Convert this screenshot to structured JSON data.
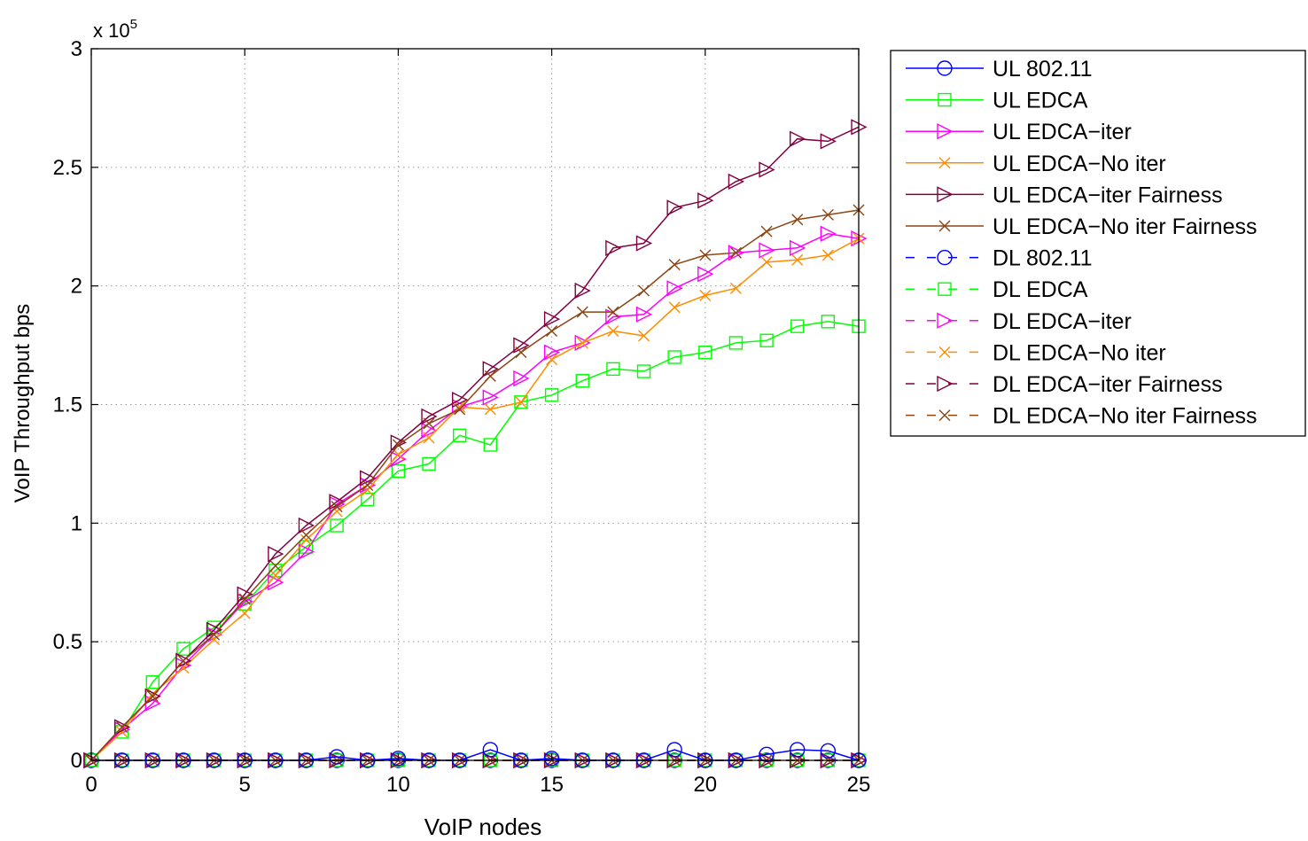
{
  "chart_data": {
    "type": "line",
    "title": "",
    "xlabel": "VoIP nodes",
    "ylabel": "VoIP Throughput bps",
    "exponent_label": {
      "base": "x 10",
      "power": "5"
    },
    "xlim": [
      0,
      25
    ],
    "ylim": [
      0,
      300000
    ],
    "y_scale_factor": 100000,
    "xticks": [
      0,
      5,
      10,
      15,
      20,
      25
    ],
    "yticks": [
      0,
      0.5,
      1,
      1.5,
      2,
      2.5,
      3
    ],
    "grid": true,
    "legend_position": "outside-right",
    "x": [
      0,
      1,
      2,
      3,
      4,
      5,
      6,
      7,
      8,
      9,
      10,
      11,
      12,
      13,
      14,
      15,
      16,
      17,
      18,
      19,
      20,
      21,
      22,
      23,
      24,
      25
    ],
    "series": [
      {
        "name": "UL 802.11",
        "color": "#0000ff",
        "marker": "circle",
        "dash": "solid",
        "values": [
          0,
          0,
          0,
          0,
          0,
          0,
          0,
          0,
          1500,
          0,
          800,
          0,
          0,
          4500,
          0,
          800,
          0,
          0,
          0,
          4500,
          0,
          0,
          2500,
          4500,
          4000,
          0
        ]
      },
      {
        "name": "UL EDCA",
        "color": "#00ff00",
        "marker": "square",
        "dash": "solid",
        "values": [
          0,
          12000,
          33000,
          47000,
          56000,
          66000,
          80000,
          90000,
          99000,
          110000,
          122000,
          125000,
          137000,
          133000,
          151000,
          154000,
          160000,
          165000,
          164000,
          170000,
          172000,
          176000,
          177000,
          183000,
          185000,
          183000
        ]
      },
      {
        "name": "UL EDCA−iter",
        "color": "#ff00ff",
        "marker": "triangle-right",
        "dash": "solid",
        "values": [
          0,
          13000,
          24000,
          40000,
          53000,
          67000,
          75000,
          88000,
          108000,
          116000,
          127000,
          139000,
          149000,
          153000,
          161000,
          172000,
          176000,
          187000,
          188000,
          199000,
          205000,
          214000,
          215000,
          216000,
          222000,
          220000
        ]
      },
      {
        "name": "UL EDCA−No iter",
        "color": "#ff8c00",
        "marker": "x",
        "dash": "solid",
        "values": [
          0,
          12000,
          28000,
          39000,
          51000,
          62000,
          78000,
          93000,
          105000,
          114000,
          129000,
          136000,
          149000,
          148000,
          151000,
          169000,
          176000,
          181000,
          179000,
          191000,
          196000,
          199000,
          210000,
          211000,
          213000,
          220000
        ]
      },
      {
        "name": "UL EDCA−iter Fairness",
        "color": "#800040",
        "marker": "triangle-right",
        "dash": "solid",
        "values": [
          0,
          14000,
          27000,
          42000,
          55000,
          70000,
          87000,
          99000,
          109000,
          119000,
          134000,
          145000,
          152000,
          165000,
          175000,
          186000,
          198000,
          216000,
          218000,
          233000,
          236000,
          244000,
          249000,
          262000,
          261000,
          267000
        ]
      },
      {
        "name": "UL EDCA−No iter Fairness",
        "color": "#8b4513",
        "marker": "x",
        "dash": "solid",
        "values": [
          0,
          14000,
          27000,
          42000,
          53000,
          68000,
          82000,
          95000,
          107000,
          116000,
          133000,
          142000,
          148000,
          162000,
          172000,
          181000,
          189000,
          189000,
          198000,
          209000,
          213000,
          214000,
          223000,
          228000,
          230000,
          232000
        ]
      },
      {
        "name": "DL 802.11",
        "color": "#0000ff",
        "marker": "circle",
        "dash": "dashed",
        "values": [
          0,
          0,
          0,
          0,
          0,
          0,
          0,
          0,
          0,
          0,
          0,
          0,
          0,
          0,
          0,
          0,
          0,
          0,
          0,
          0,
          0,
          0,
          0,
          0,
          0,
          0
        ]
      },
      {
        "name": "DL EDCA",
        "color": "#00ff00",
        "marker": "square",
        "dash": "dashed",
        "values": [
          0,
          0,
          0,
          0,
          0,
          0,
          0,
          0,
          0,
          0,
          0,
          0,
          0,
          0,
          0,
          0,
          0,
          0,
          0,
          0,
          0,
          0,
          0,
          0,
          0,
          0
        ]
      },
      {
        "name": "DL EDCA−iter",
        "color": "#ff00ff",
        "marker": "triangle-right",
        "dash": "dashed",
        "values": [
          0,
          0,
          0,
          0,
          0,
          0,
          0,
          0,
          0,
          0,
          0,
          0,
          0,
          0,
          0,
          0,
          0,
          0,
          0,
          0,
          0,
          0,
          0,
          0,
          0,
          0
        ]
      },
      {
        "name": "DL EDCA−No iter",
        "color": "#ff8c00",
        "marker": "x",
        "dash": "dashed",
        "values": [
          0,
          0,
          0,
          0,
          0,
          0,
          0,
          0,
          0,
          0,
          0,
          0,
          0,
          0,
          0,
          0,
          0,
          0,
          0,
          0,
          0,
          0,
          0,
          0,
          0,
          0
        ]
      },
      {
        "name": "DL EDCA−iter Fairness",
        "color": "#800040",
        "marker": "triangle-right",
        "dash": "dashed",
        "values": [
          0,
          0,
          0,
          0,
          0,
          0,
          0,
          0,
          0,
          0,
          0,
          0,
          0,
          0,
          0,
          0,
          0,
          0,
          0,
          0,
          0,
          0,
          0,
          0,
          0,
          0
        ]
      },
      {
        "name": "DL EDCA−No iter Fairness",
        "color": "#8b4513",
        "marker": "x",
        "dash": "dashed",
        "values": [
          0,
          0,
          0,
          0,
          0,
          0,
          0,
          0,
          0,
          0,
          0,
          0,
          0,
          0,
          0,
          0,
          0,
          0,
          0,
          0,
          0,
          0,
          0,
          0,
          0,
          0
        ]
      }
    ]
  }
}
